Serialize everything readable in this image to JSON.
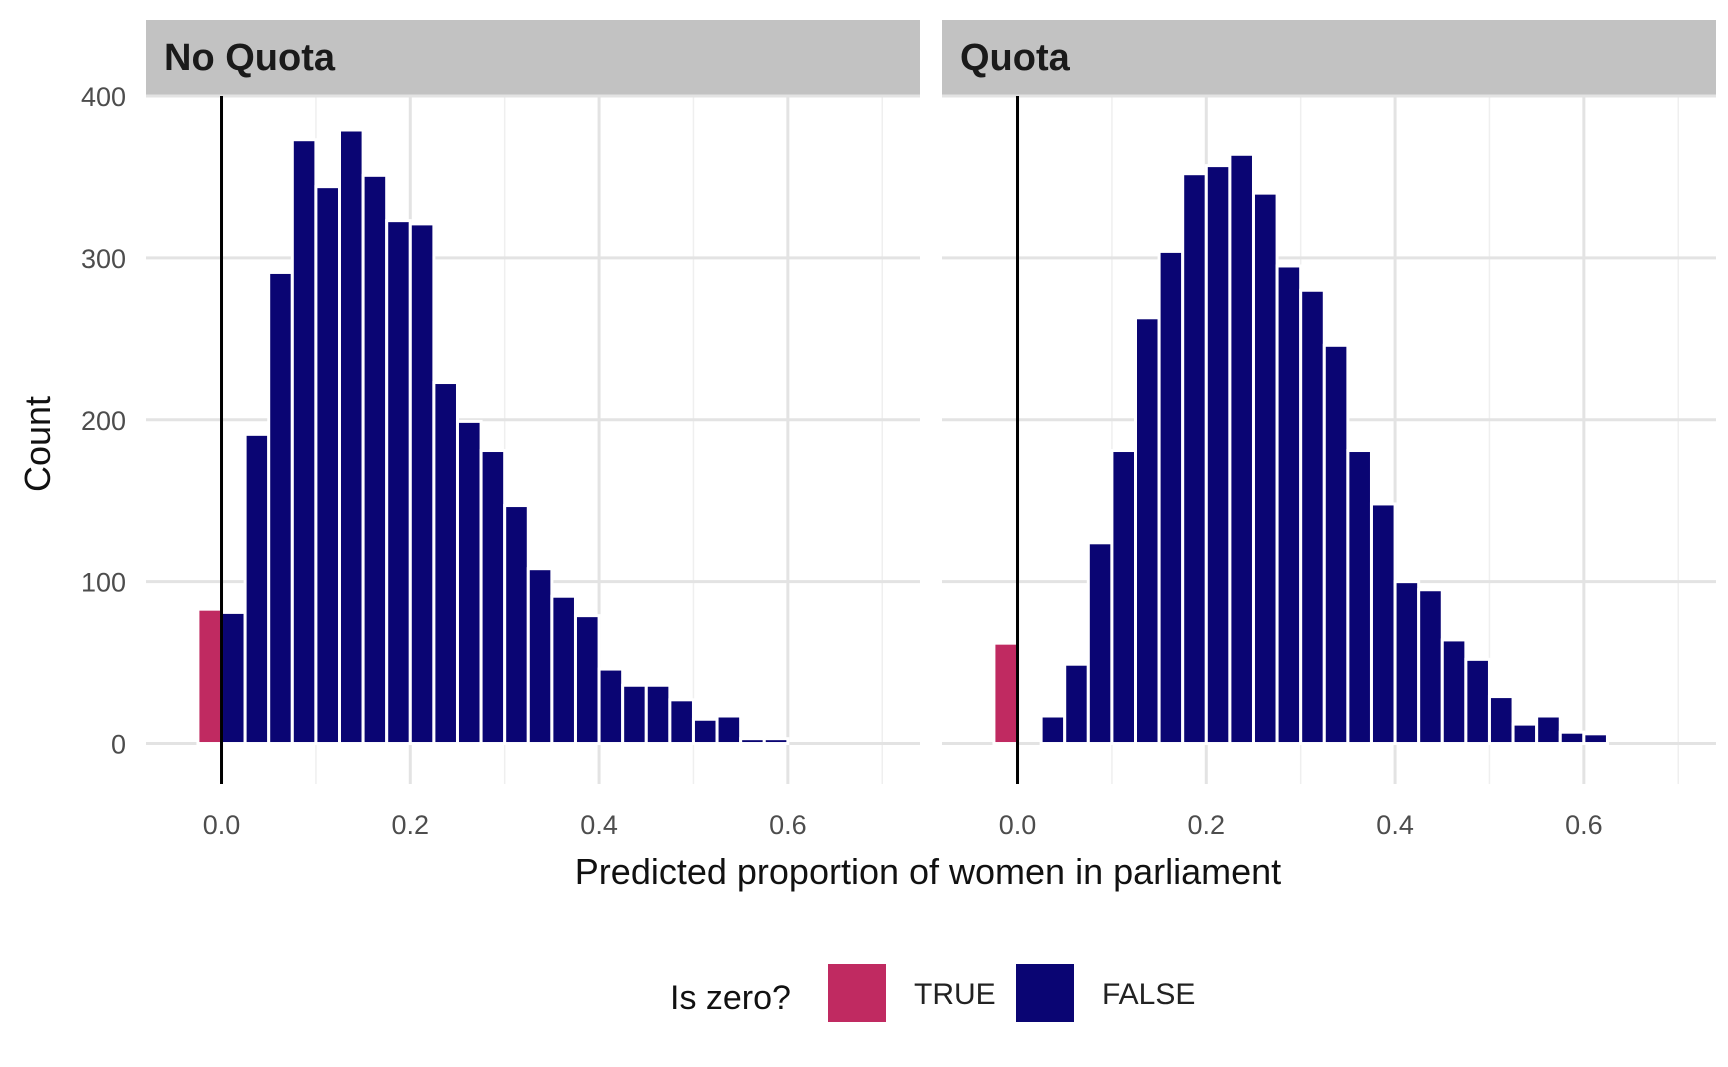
{
  "chart_data": {
    "type": "bar",
    "xlabel": "Predicted proportion of women in parliament",
    "ylabel": "Count",
    "xlim": [
      -0.08,
      0.74
    ],
    "ylim": [
      -25,
      400
    ],
    "x_ticks": [
      0.0,
      0.2,
      0.4,
      0.6
    ],
    "x_tick_labels": [
      "0.0",
      "0.2",
      "0.4",
      "0.6"
    ],
    "y_ticks": [
      0,
      100,
      200,
      300,
      400
    ],
    "y_tick_labels": [
      "0",
      "100",
      "200",
      "300",
      "400"
    ],
    "bin_width": 0.025,
    "zero_line_x": 0,
    "grid": true,
    "legend": {
      "title": "Is zero?",
      "position": "bottom",
      "entries": [
        {
          "label": "TRUE",
          "color": "#c02a61"
        },
        {
          "label": "FALSE",
          "color": "#0a0573"
        }
      ]
    },
    "panels": [
      {
        "title": "No Quota",
        "series": [
          {
            "name": "TRUE",
            "color": "#c02a61",
            "x": [
              -0.0125
            ],
            "values": [
              83
            ]
          },
          {
            "name": "FALSE",
            "color": "#0a0573",
            "x": [
              0.0125,
              0.0375,
              0.0625,
              0.0875,
              0.1125,
              0.1375,
              0.1625,
              0.1875,
              0.2125,
              0.2375,
              0.2625,
              0.2875,
              0.3125,
              0.3375,
              0.3625,
              0.3875,
              0.4125,
              0.4375,
              0.4625,
              0.4875,
              0.5125,
              0.5375,
              0.5625,
              0.5875
            ],
            "values": [
              81,
              191,
              291,
              373,
              344,
              379,
              351,
              323,
              321,
              223,
              199,
              181,
              147,
              108,
              91,
              79,
              46,
              36,
              36,
              27,
              15,
              17,
              3,
              3
            ]
          }
        ]
      },
      {
        "title": "Quota",
        "series": [
          {
            "name": "TRUE",
            "color": "#c02a61",
            "x": [
              -0.0125
            ],
            "values": [
              62
            ]
          },
          {
            "name": "FALSE",
            "color": "#0a0573",
            "x": [
              0.0375,
              0.0625,
              0.0875,
              0.1125,
              0.1375,
              0.1625,
              0.1875,
              0.2125,
              0.2375,
              0.2625,
              0.2875,
              0.3125,
              0.3375,
              0.3625,
              0.3875,
              0.4125,
              0.4375,
              0.4625,
              0.4875,
              0.5125,
              0.5375,
              0.5625,
              0.5875,
              0.6125
            ],
            "values": [
              17,
              49,
              124,
              181,
              263,
              304,
              352,
              357,
              364,
              340,
              295,
              280,
              246,
              181,
              148,
              100,
              95,
              64,
              52,
              29,
              12,
              17,
              7,
              6
            ]
          }
        ]
      }
    ]
  }
}
